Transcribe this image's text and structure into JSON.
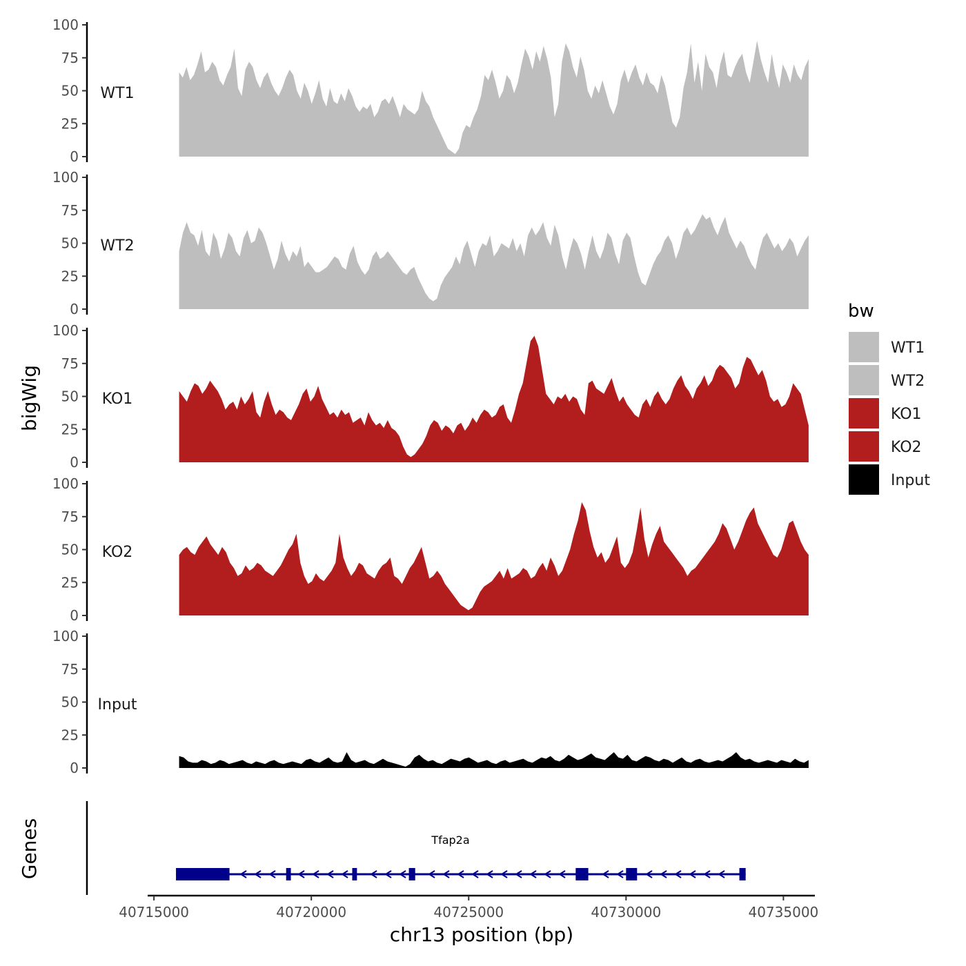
{
  "chart_data": {
    "type": "area",
    "chromosome": "chr13",
    "xlabel": "chr13 position (bp)",
    "ylabel": "bigWig",
    "genes_label": "Genes",
    "xlim": [
      40714800,
      40736000
    ],
    "x_ticks": [
      40715000,
      40720000,
      40725000,
      40730000,
      40735000
    ],
    "x_tick_labels": [
      "40715000",
      "40720000",
      "40725000",
      "40730000",
      "40735000"
    ],
    "ylim": [
      0,
      100
    ],
    "y_ticks": [
      0,
      25,
      50,
      75,
      100
    ],
    "y_tick_labels": [
      "0",
      "25",
      "50",
      "75",
      "100"
    ],
    "region": [
      40715800,
      40735800
    ],
    "grid": false,
    "legend": {
      "title": "bw",
      "position": "right",
      "entries": [
        {
          "label": "WT1",
          "color": "#BEBEBE"
        },
        {
          "label": "WT2",
          "color": "#BEBEBE"
        },
        {
          "label": "KO1",
          "color": "#B21E1E"
        },
        {
          "label": "KO2",
          "color": "#B21E1E"
        },
        {
          "label": "Input",
          "color": "#000000"
        }
      ]
    },
    "series": [
      {
        "name": "WT1",
        "color": "#BEBEBE",
        "values": [
          64,
          60,
          68,
          58,
          62,
          70,
          80,
          64,
          66,
          72,
          68,
          58,
          54,
          62,
          68,
          82,
          52,
          46,
          66,
          72,
          68,
          58,
          52,
          60,
          64,
          56,
          50,
          46,
          52,
          60,
          66,
          62,
          50,
          44,
          56,
          50,
          40,
          48,
          58,
          44,
          38,
          52,
          42,
          40,
          48,
          42,
          52,
          46,
          38,
          34,
          38,
          36,
          40,
          30,
          34,
          42,
          44,
          40,
          46,
          38,
          30,
          40,
          36,
          34,
          32,
          36,
          50,
          42,
          38,
          30,
          24,
          18,
          12,
          6,
          4,
          2,
          6,
          18,
          24,
          22,
          30,
          36,
          46,
          62,
          58,
          66,
          56,
          44,
          50,
          62,
          58,
          48,
          56,
          70,
          82,
          76,
          66,
          80,
          72,
          84,
          74,
          60,
          30,
          40,
          72,
          86,
          80,
          68,
          60,
          76,
          66,
          50,
          44,
          54,
          48,
          58,
          48,
          38,
          32,
          40,
          58,
          66,
          56,
          64,
          70,
          60,
          54,
          64,
          56,
          54,
          48,
          62,
          54,
          40,
          26,
          22,
          30,
          52,
          64,
          86,
          56,
          72,
          50,
          78,
          68,
          64,
          52,
          70,
          80,
          62,
          60,
          68,
          74,
          78,
          64,
          56,
          72,
          88,
          74,
          64,
          56,
          78,
          62,
          52,
          70,
          64,
          56,
          70,
          62,
          58,
          68,
          74
        ]
      },
      {
        "name": "WT2",
        "color": "#BEBEBE",
        "values": [
          44,
          58,
          66,
          58,
          56,
          48,
          60,
          44,
          40,
          58,
          52,
          38,
          46,
          58,
          54,
          44,
          40,
          54,
          60,
          50,
          52,
          62,
          58,
          50,
          40,
          30,
          38,
          52,
          42,
          36,
          44,
          40,
          48,
          32,
          36,
          32,
          28,
          28,
          30,
          32,
          36,
          40,
          38,
          32,
          30,
          42,
          48,
          36,
          30,
          26,
          30,
          40,
          44,
          38,
          40,
          44,
          40,
          36,
          32,
          28,
          26,
          30,
          32,
          24,
          18,
          12,
          8,
          6,
          8,
          18,
          24,
          28,
          32,
          40,
          34,
          46,
          52,
          42,
          32,
          44,
          50,
          48,
          56,
          40,
          44,
          50,
          48,
          46,
          54,
          44,
          50,
          40,
          56,
          62,
          56,
          60,
          66,
          54,
          48,
          64,
          56,
          40,
          30,
          44,
          54,
          50,
          42,
          30,
          44,
          56,
          44,
          38,
          46,
          58,
          54,
          42,
          34,
          52,
          58,
          54,
          40,
          28,
          20,
          18,
          26,
          34,
          40,
          44,
          52,
          56,
          50,
          38,
          46,
          58,
          62,
          56,
          60,
          66,
          72,
          68,
          70,
          62,
          56,
          64,
          70,
          58,
          52,
          46,
          52,
          48,
          40,
          34,
          30,
          44,
          54,
          58,
          52,
          46,
          50,
          44,
          48,
          54,
          50,
          40,
          46,
          52,
          56
        ]
      },
      {
        "name": "KO1",
        "color": "#B21E1E",
        "values": [
          54,
          50,
          46,
          54,
          60,
          58,
          52,
          56,
          62,
          58,
          54,
          48,
          40,
          44,
          46,
          40,
          50,
          44,
          48,
          54,
          38,
          34,
          46,
          54,
          44,
          36,
          40,
          38,
          34,
          32,
          38,
          44,
          52,
          56,
          46,
          50,
          58,
          48,
          42,
          36,
          38,
          34,
          40,
          36,
          38,
          30,
          32,
          34,
          28,
          38,
          32,
          28,
          30,
          26,
          32,
          26,
          24,
          20,
          12,
          6,
          4,
          6,
          10,
          14,
          20,
          28,
          32,
          30,
          24,
          28,
          26,
          22,
          28,
          30,
          24,
          28,
          34,
          30,
          36,
          40,
          38,
          34,
          36,
          42,
          44,
          34,
          30,
          40,
          52,
          60,
          76,
          92,
          96,
          88,
          70,
          52,
          48,
          44,
          50,
          48,
          52,
          46,
          50,
          48,
          40,
          36,
          60,
          62,
          56,
          54,
          52,
          58,
          64,
          54,
          46,
          50,
          44,
          40,
          36,
          34,
          44,
          48,
          42,
          50,
          54,
          48,
          44,
          48,
          56,
          62,
          66,
          58,
          54,
          48,
          56,
          60,
          66,
          58,
          62,
          70,
          74,
          72,
          68,
          64,
          56,
          60,
          72,
          80,
          78,
          72,
          66,
          70,
          62,
          50,
          46,
          48,
          42,
          44,
          50,
          60,
          56,
          52,
          40,
          28
        ]
      },
      {
        "name": "KO2",
        "color": "#B21E1E",
        "values": [
          46,
          50,
          52,
          48,
          46,
          52,
          56,
          60,
          54,
          50,
          46,
          52,
          48,
          40,
          36,
          30,
          32,
          38,
          34,
          36,
          40,
          38,
          34,
          32,
          30,
          34,
          38,
          44,
          50,
          54,
          62,
          40,
          30,
          24,
          26,
          32,
          28,
          26,
          30,
          34,
          40,
          62,
          44,
          36,
          30,
          34,
          40,
          38,
          32,
          30,
          28,
          34,
          38,
          40,
          44,
          30,
          28,
          24,
          30,
          36,
          40,
          46,
          52,
          40,
          28,
          30,
          34,
          30,
          24,
          20,
          16,
          12,
          8,
          6,
          4,
          6,
          12,
          18,
          22,
          24,
          26,
          30,
          34,
          28,
          36,
          28,
          30,
          32,
          36,
          34,
          28,
          30,
          36,
          40,
          34,
          44,
          38,
          30,
          34,
          42,
          50,
          62,
          72,
          86,
          80,
          64,
          52,
          44,
          48,
          40,
          44,
          52,
          60,
          40,
          36,
          40,
          48,
          64,
          82,
          58,
          44,
          54,
          62,
          68,
          56,
          52,
          48,
          44,
          40,
          36,
          30,
          34,
          36,
          40,
          44,
          48,
          52,
          56,
          62,
          70,
          66,
          58,
          50,
          56,
          64,
          72,
          78,
          82,
          70,
          64,
          58,
          52,
          46,
          44,
          50,
          60,
          70,
          72,
          64,
          56,
          50,
          46
        ]
      },
      {
        "name": "Input",
        "color": "#000000",
        "values": [
          9,
          8,
          5,
          4,
          4,
          6,
          5,
          3,
          4,
          6,
          5,
          3,
          4,
          5,
          6,
          4,
          3,
          5,
          4,
          3,
          5,
          6,
          4,
          3,
          4,
          5,
          4,
          3,
          6,
          7,
          5,
          4,
          6,
          8,
          5,
          4,
          5,
          12,
          6,
          4,
          5,
          6,
          4,
          3,
          5,
          7,
          5,
          4,
          3,
          2,
          1,
          3,
          8,
          10,
          7,
          5,
          6,
          4,
          3,
          5,
          7,
          6,
          5,
          7,
          8,
          6,
          4,
          5,
          6,
          4,
          3,
          5,
          6,
          4,
          5,
          6,
          7,
          5,
          4,
          6,
          8,
          7,
          9,
          6,
          5,
          7,
          10,
          8,
          6,
          7,
          9,
          11,
          8,
          7,
          6,
          9,
          12,
          8,
          7,
          10,
          6,
          5,
          7,
          9,
          8,
          6,
          5,
          7,
          6,
          4,
          6,
          8,
          5,
          4,
          6,
          7,
          5,
          4,
          5,
          6,
          5,
          7,
          9,
          12,
          8,
          6,
          7,
          5,
          4,
          5,
          6,
          5,
          4,
          6,
          5,
          4,
          7,
          5,
          4,
          6
        ]
      }
    ],
    "gene": {
      "name": "Tfap2a",
      "strand": "-",
      "start": 40715700,
      "end": 40733800,
      "exons": [
        [
          40715700,
          40717400
        ],
        [
          40719200,
          40719350
        ],
        [
          40721300,
          40721450
        ],
        [
          40723100,
          40723300
        ],
        [
          40728400,
          40728800
        ],
        [
          40730000,
          40730350
        ],
        [
          40733600,
          40733800
        ]
      ],
      "color": "#00008B"
    }
  }
}
